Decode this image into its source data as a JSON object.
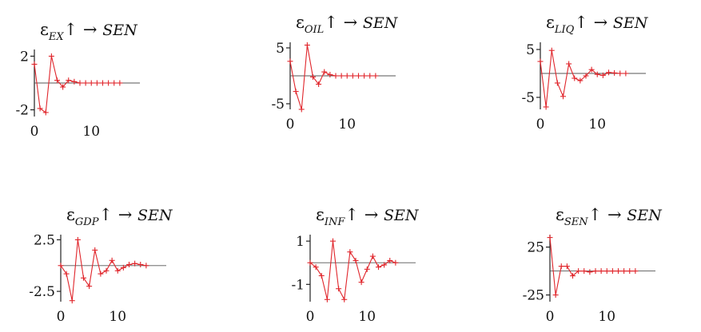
{
  "colors": {
    "series": "#e0252b",
    "axis": "#222222",
    "zero_line": "#555555"
  },
  "chart_data": [
    {
      "type": "line",
      "title": {
        "symbol": "ε",
        "sub": "EX",
        "suffix": "SEN"
      },
      "ylim": [
        -2.5,
        2.5
      ],
      "yticks": [
        2,
        -2
      ],
      "ytick_labels": [
        "2",
        "-2"
      ],
      "xlim": [
        0,
        16
      ],
      "xticks": [
        0,
        10
      ],
      "xtick_labels": [
        "0",
        "10"
      ],
      "x": [
        0,
        1,
        2,
        3,
        4,
        5,
        6,
        7,
        8,
        9,
        10,
        11,
        12,
        13,
        14,
        15
      ],
      "values": [
        1.4,
        -1.9,
        -2.2,
        2.0,
        0.2,
        -0.3,
        0.2,
        0.1,
        0.0,
        0.0,
        0.0,
        0.0,
        0.0,
        0.0,
        0.0,
        0.0
      ]
    },
    {
      "type": "line",
      "title": {
        "symbol": "ε",
        "sub": "OIL",
        "suffix": "SEN"
      },
      "ylim": [
        -6,
        6
      ],
      "yticks": [
        5,
        -5
      ],
      "ytick_labels": [
        "5",
        "-5"
      ],
      "xlim": [
        0,
        16
      ],
      "xticks": [
        0,
        10
      ],
      "xtick_labels": [
        "0",
        "10"
      ],
      "x": [
        0,
        1,
        2,
        3,
        4,
        5,
        6,
        7,
        8,
        9,
        10,
        11,
        12,
        13,
        14,
        15
      ],
      "values": [
        2.6,
        -2.8,
        -6.0,
        5.5,
        -0.2,
        -1.5,
        0.7,
        0.2,
        0.0,
        0.0,
        0.0,
        0.0,
        0.0,
        0.0,
        0.0,
        0.0
      ]
    },
    {
      "type": "line",
      "title": {
        "symbol": "ε",
        "sub": "LIQ",
        "suffix": "SEN"
      },
      "ylim": [
        -7.5,
        6.5
      ],
      "yticks": [
        5,
        -5
      ],
      "ytick_labels": [
        "5",
        "-5"
      ],
      "xlim": [
        0,
        16
      ],
      "xticks": [
        0,
        10
      ],
      "xtick_labels": [
        "0",
        "10"
      ],
      "x": [
        0,
        1,
        2,
        3,
        4,
        5,
        6,
        7,
        8,
        9,
        10,
        11,
        12,
        13,
        14,
        15
      ],
      "values": [
        2.5,
        -7.0,
        4.8,
        -2.0,
        -4.8,
        2.0,
        -1.0,
        -1.5,
        -0.5,
        0.8,
        -0.2,
        -0.4,
        0.2,
        0.1,
        0.0,
        0.0
      ]
    },
    {
      "type": "line",
      "title": {
        "symbol": "ε",
        "sub": "GDP",
        "suffix": "SEN"
      },
      "ylim": [
        -3.5,
        3.0
      ],
      "yticks": [
        2.5,
        -2.5
      ],
      "ytick_labels": [
        "2.5",
        "-2.5"
      ],
      "xlim": [
        0,
        16
      ],
      "xticks": [
        0,
        10
      ],
      "xtick_labels": [
        "0",
        "10"
      ],
      "x": [
        0,
        1,
        2,
        3,
        4,
        5,
        6,
        7,
        8,
        9,
        10,
        11,
        12,
        13,
        14,
        15
      ],
      "values": [
        0.0,
        -0.8,
        -3.4,
        2.5,
        -1.2,
        -2.0,
        1.5,
        -0.8,
        -0.5,
        0.5,
        -0.5,
        -0.2,
        0.1,
        0.2,
        0.1,
        0.0
      ]
    },
    {
      "type": "line",
      "title": {
        "symbol": "ε",
        "sub": "INF",
        "suffix": "SEN"
      },
      "ylim": [
        -1.8,
        1.3
      ],
      "yticks": [
        1,
        -1
      ],
      "ytick_labels": [
        "1",
        "-1"
      ],
      "xlim": [
        0,
        16
      ],
      "xticks": [
        0,
        10
      ],
      "xtick_labels": [
        "0",
        "10"
      ],
      "x": [
        0,
        1,
        2,
        3,
        4,
        5,
        6,
        7,
        8,
        9,
        10,
        11,
        12,
        13,
        14,
        15
      ],
      "values": [
        0.0,
        -0.2,
        -0.6,
        -1.7,
        1.0,
        -1.2,
        -1.7,
        0.5,
        0.1,
        -0.9,
        -0.3,
        0.3,
        -0.2,
        -0.1,
        0.1,
        0.0
      ]
    },
    {
      "type": "line",
      "title": {
        "symbol": "ε",
        "sub": "SEN",
        "suffix": "SEN"
      },
      "ylim": [
        -32,
        38
      ],
      "yticks": [
        25,
        -25
      ],
      "ytick_labels": [
        "25",
        "-25"
      ],
      "xlim": [
        0,
        16
      ],
      "xticks": [
        0,
        10
      ],
      "xtick_labels": [
        "0",
        "10"
      ],
      "x": [
        0,
        1,
        2,
        3,
        4,
        5,
        6,
        7,
        8,
        9,
        10,
        11,
        12,
        13,
        14,
        15
      ],
      "values": [
        35,
        -25,
        5,
        5,
        -5,
        0,
        0,
        -1,
        0,
        0,
        0,
        0,
        0,
        0,
        0,
        0
      ]
    }
  ]
}
